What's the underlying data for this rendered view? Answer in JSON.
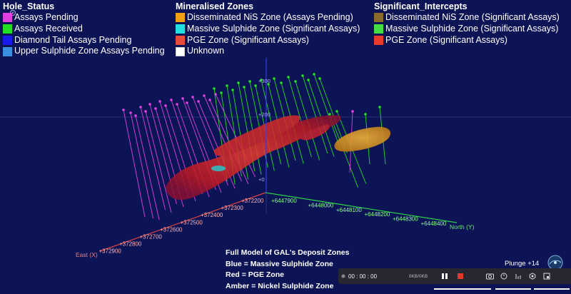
{
  "legend": {
    "hole_status": {
      "title": "Hole_Status",
      "items": [
        {
          "label": "Assays Pending",
          "color": "#e040e0"
        },
        {
          "label": "Assays Received",
          "color": "#22dd22"
        },
        {
          "label": "Diamond Tail Assays Pending",
          "color": "#1a1aee"
        },
        {
          "label": "Upper Sulphide Zone Assays Pending",
          "color": "#3a8ee0"
        }
      ]
    },
    "mineralised_zones": {
      "title": "Mineralised Zones",
      "items": [
        {
          "label": "Disseminated NiS Zone (Assays Pending)",
          "color": "#f0a010"
        },
        {
          "label": "Massive Sulphide Zone (Significant Assays)",
          "color": "#22e0e0"
        },
        {
          "label": "PGE Zone (Significant Assays)",
          "color": "#e84a3c"
        },
        {
          "label": "Unknown",
          "color": "#ffffff"
        }
      ]
    },
    "significant_intercepts": {
      "title": "Significant_Intercepts",
      "items": [
        {
          "label": "Disseminated NiS Zone (Significant Assays)",
          "color": "#8a6a2a"
        },
        {
          "label": "Massive Sulphide Zone (Significant Assays)",
          "color": "#44dd44"
        },
        {
          "label": "PGE Zone (Significant Assays)",
          "color": "#e83a2c"
        }
      ]
    }
  },
  "axes": {
    "east_label": "East (X)",
    "north_label": "North (Y)",
    "east_ticks": [
      "+372200",
      "+372300",
      "+372400",
      "+372500",
      "+372600",
      "+372700",
      "+372800",
      "+372900"
    ],
    "north_ticks": [
      "+6447900",
      "+6448000",
      "+6448100",
      "+6448200",
      "+6448300",
      "+6448400"
    ],
    "elev_ticks": [
      "+300",
      "+200",
      "+0"
    ]
  },
  "caption": {
    "line1": "Full Model of GAL's Deposit Zones",
    "line2": "Blue = Massive Sulphide Zone",
    "line3": "Red = PGE Zone",
    "line4": "Amber = Nickel Sulphide Zone"
  },
  "plunge": "Plunge +14",
  "media": {
    "time": "00 : 00 : 00",
    "size": "0KB/0KB"
  }
}
